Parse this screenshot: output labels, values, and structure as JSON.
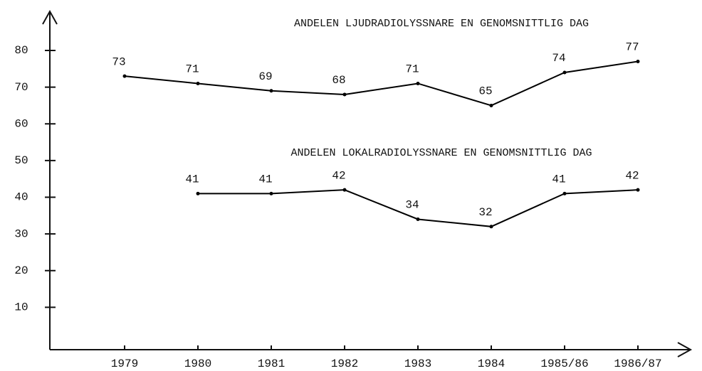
{
  "chart_data": {
    "type": "line",
    "categories": [
      "1979",
      "1980",
      "1981",
      "1982",
      "1983",
      "1984",
      "1985/86",
      "1986/87"
    ],
    "series": [
      {
        "name": "ANDELEN LJUDRADIOLYSSNARE EN GENOMSNITTLIG DAG",
        "color": "#000000",
        "values": [
          73,
          71,
          69,
          68,
          71,
          65,
          74,
          77
        ]
      },
      {
        "name": "ANDELEN LOKALRADIOLYSSNARE EN GENOMSNITTLIG DAG",
        "color": "#000000",
        "values": [
          null,
          41,
          41,
          42,
          34,
          32,
          41,
          42
        ]
      }
    ],
    "ylim": [
      0,
      80
    ],
    "yticks": [
      10,
      20,
      30,
      40,
      50,
      60,
      70,
      80
    ],
    "grid": false
  }
}
